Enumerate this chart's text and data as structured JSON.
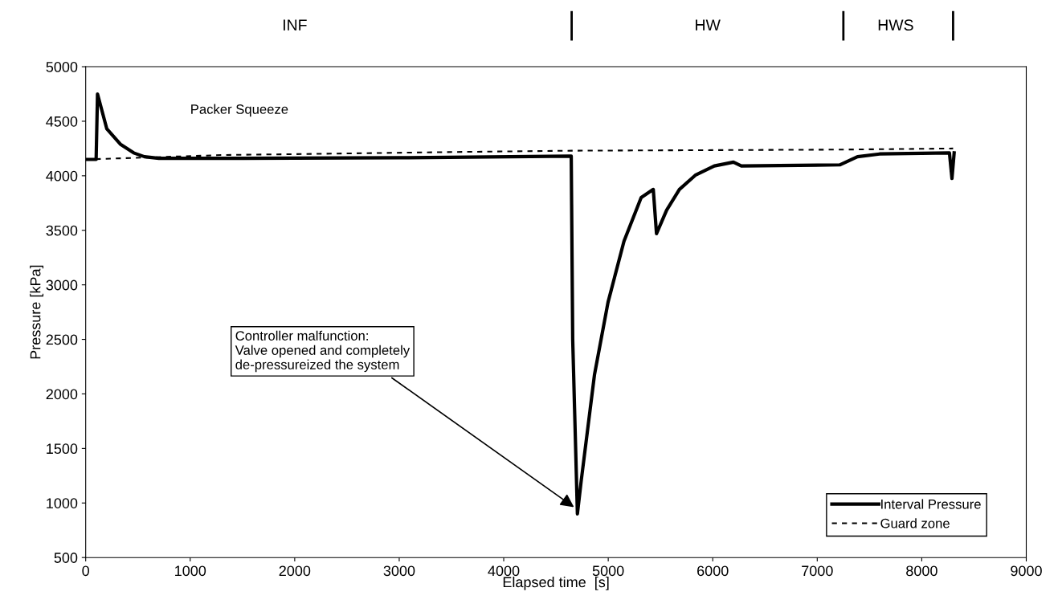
{
  "chart_data": {
    "type": "line",
    "xlabel": "Elapsed time  [s]",
    "ylabel": "Pressure [kPa]",
    "xlim": [
      0,
      9000
    ],
    "xticks": [
      0,
      1000,
      2000,
      3000,
      4000,
      5000,
      6000,
      7000,
      8000,
      9000
    ],
    "ylim": [
      500,
      5000
    ],
    "yticks": [
      500,
      1000,
      1500,
      2000,
      2500,
      3000,
      3500,
      4000,
      4500,
      5000
    ],
    "grid": false,
    "legend": "bottom right",
    "marker": "none",
    "series": [
      {
        "name": "Interval Pressure",
        "color": "#000000",
        "line_style": "solid",
        "x": [
          0,
          100,
          113,
          202,
          331,
          459,
          562,
          700,
          1500,
          3000,
          4646,
          4660,
          4705,
          4741,
          4869,
          4998,
          5151,
          5315,
          5431,
          5462,
          5559,
          5681,
          5833,
          6015,
          6198,
          6274,
          7215,
          7385,
          7596,
          8265,
          8289,
          8310
        ],
        "values": [
          4150,
          4150,
          4750,
          4430,
          4290,
          4210,
          4175,
          4160,
          4160,
          4165,
          4180,
          2500,
          900,
          1200,
          2180,
          2840,
          3400,
          3800,
          3875,
          3470,
          3685,
          3875,
          4005,
          4090,
          4125,
          4090,
          4100,
          4175,
          4200,
          4210,
          3975,
          4210
        ]
      },
      {
        "name": "Guard zone",
        "color": "#000000",
        "line_style": "dashed",
        "x": [
          0,
          1300,
          3700,
          4650,
          7200,
          8300
        ],
        "values": [
          4150,
          4190,
          4220,
          4230,
          4240,
          4250
        ]
      }
    ],
    "annotations": [
      "Packer Squeeze",
      {
        "text": "Controller malfunction:\nValve opened and completely\nde-pressureized the system",
        "x": 4690,
        "y": 950
      },
      "INF",
      "HW",
      "HWS"
    ]
  }
}
